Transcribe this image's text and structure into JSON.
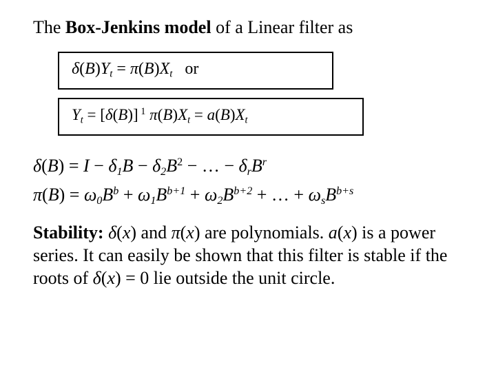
{
  "colors": {
    "background": "#ffffff",
    "text": "#000000",
    "border": "#000000"
  },
  "fonts": {
    "body": "Times New Roman",
    "base_size_pt": 26
  },
  "title": {
    "pre": "The ",
    "bold": "Box-Jenkins model",
    "post": " of a Linear filter as"
  },
  "eq_box1": "δ(B)Y_t = π(B)X_t   or",
  "eq_box2": "Y_t = [δ(B)]^{-1} π(B)X_t = a(B)X_t",
  "eq_delta": "δ(B) = I − δ_1 B − δ_2 B^2 − … − δ_r B^r",
  "eq_pi": "π(B) = ω_0 B^b + ω_1 B^{b+1} + ω_2 B^{b+2} + … + ω_s B^{b+s}",
  "stability": {
    "label": "Stability:",
    "text1": " δ(x) and π(x) are polynomials. a(x) is a power series. It can easily be shown that this filter is stable if the roots of δ(x) = 0 lie outside the unit circle."
  }
}
